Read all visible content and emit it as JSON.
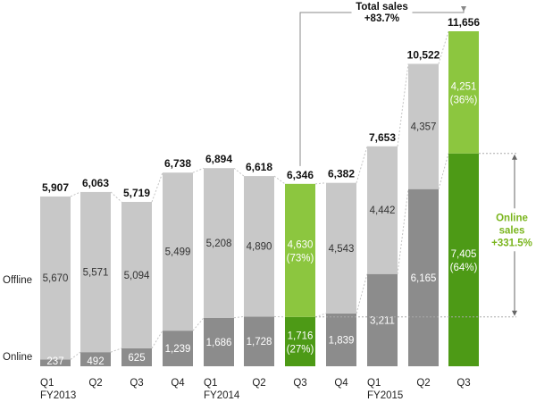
{
  "chart_data": {
    "type": "bar",
    "stacked": true,
    "categories": [
      "Q1 FY2013",
      "Q2",
      "Q3",
      "Q4",
      "Q1 FY2014",
      "Q2",
      "Q3",
      "Q4",
      "Q1 FY2015",
      "Q2",
      "Q3"
    ],
    "category_lines": [
      [
        "Q1",
        "FY2013"
      ],
      [
        "Q2"
      ],
      [
        "Q3"
      ],
      [
        "Q4"
      ],
      [
        "Q1",
        "FY2014"
      ],
      [
        "Q2"
      ],
      [
        "Q3"
      ],
      [
        "Q4"
      ],
      [
        "Q1",
        "FY2015"
      ],
      [
        "Q2"
      ],
      [
        "Q3"
      ]
    ],
    "series": [
      {
        "name": "Online",
        "values": [
          237,
          492,
          625,
          1239,
          1686,
          1728,
          1716,
          1839,
          3211,
          6165,
          7405
        ]
      },
      {
        "name": "Offline",
        "values": [
          5670,
          5571,
          5094,
          5499,
          5208,
          4890,
          4630,
          4543,
          4442,
          4357,
          4251
        ]
      }
    ],
    "value_labels": {
      "Online": [
        "237",
        "492",
        "625",
        "1,239",
        "1,686",
        "1,728",
        "1,716",
        "1,839",
        "3,211",
        "6,165",
        "7,405"
      ],
      "Offline": [
        "5,670",
        "5,571",
        "5,094",
        "5,499",
        "5,208",
        "4,890",
        "4,630",
        "4,543",
        "4,442",
        "4,357",
        "4,251"
      ]
    },
    "share_labels": {
      "Online": {
        "6": "(27%)",
        "10": "(64%)"
      },
      "Offline": {
        "6": "(73%)",
        "10": "(36%)"
      }
    },
    "totals": [
      5907,
      6063,
      5719,
      6738,
      6894,
      6618,
      6346,
      6382,
      7653,
      10522,
      11656
    ],
    "total_labels": [
      "5,907",
      "6,063",
      "5,719",
      "6,738",
      "6,894",
      "6,618",
      "6,346",
      "6,382",
      "7,653",
      "10,522",
      "11,656"
    ],
    "highlight_indices": [
      6,
      10
    ],
    "ylim": [
      0,
      11656
    ],
    "grid": false,
    "series_side_labels": {
      "offline": "Offline",
      "online": "Online"
    },
    "annotations": {
      "total_sales": {
        "line1": "Total sales",
        "line2": "+83.7%",
        "from_index": 6,
        "to_index": 10
      },
      "online_sales": {
        "line1": "Online",
        "line2": "sales",
        "line3": "+331.5%",
        "from_index": 8,
        "to_index": 10
      }
    },
    "colors": {
      "offline": "#c8c8c8",
      "online": "#8c8c8c",
      "highlight_offline": "#8cc63f",
      "highlight_online": "#4d9a16",
      "annotation_green": "#7ab51d",
      "connector": "#c4c4c4"
    }
  }
}
